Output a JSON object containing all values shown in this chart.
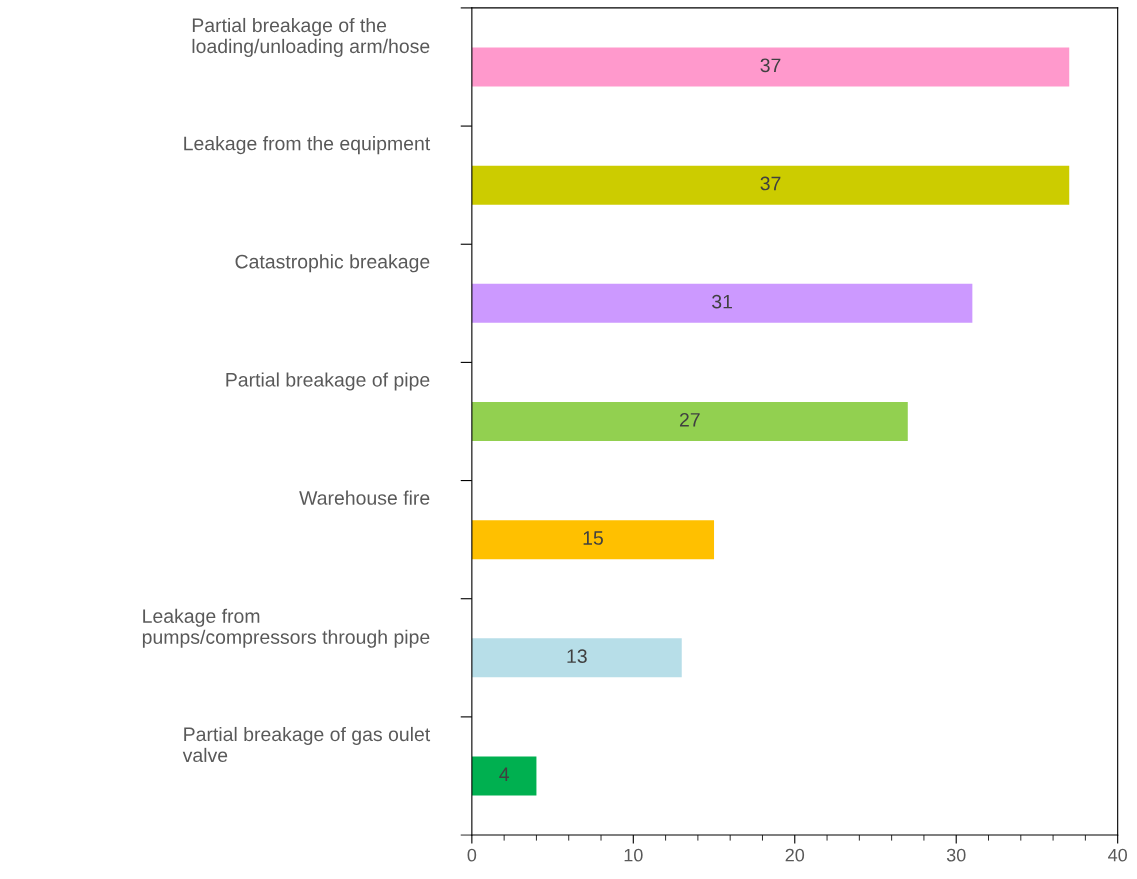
{
  "chart_data": {
    "type": "bar",
    "orientation": "horizontal",
    "categories": [
      "Partial breakage of the\nloading/unloading arm/hose",
      "Leakage from the equipment",
      "Catastrophic breakage",
      "Partial breakage of pipe",
      "Warehouse fire",
      "Leakage from\npumps/compressors through pipe",
      "Partial breakage of gas oulet\nvalve"
    ],
    "values": [
      37,
      37,
      31,
      27,
      15,
      13,
      4
    ],
    "colors": [
      "#ff99cc",
      "#cccc00",
      "#cc99ff",
      "#92d050",
      "#ffc000",
      "#b7dee8",
      "#00b050"
    ],
    "xlim": [
      0,
      40
    ],
    "xticks": [
      0,
      10,
      20,
      30,
      40
    ],
    "data_labels": true,
    "grid": false,
    "legend": false
  }
}
